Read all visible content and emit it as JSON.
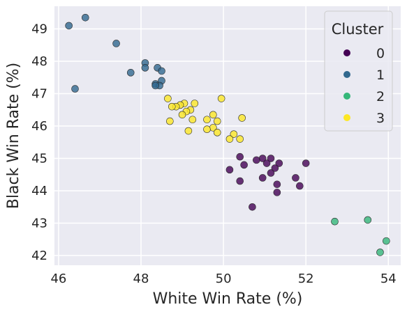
{
  "chart_data": {
    "type": "scatter",
    "title": "",
    "xlabel": "White Win Rate (%)",
    "ylabel": "Black Win Rate (%)",
    "xlim": [
      45.9,
      54.3
    ],
    "ylim": [
      41.7,
      49.7
    ],
    "xticks": [
      46,
      48,
      50,
      52,
      54
    ],
    "yticks": [
      42,
      43,
      44,
      45,
      46,
      47,
      48,
      49
    ],
    "grid": true,
    "background": "#eaeaf2",
    "legend": {
      "title": "Cluster",
      "placement": "top-right",
      "entries": [
        {
          "label": "0",
          "color": "#440154"
        },
        {
          "label": "1",
          "color": "#31688e"
        },
        {
          "label": "2",
          "color": "#35b779"
        },
        {
          "label": "3",
          "color": "#fde725"
        }
      ]
    },
    "series": [
      {
        "name": "0",
        "color": "#440154",
        "points": [
          [
            50.4,
            45.05
          ],
          [
            50.8,
            44.95
          ],
          [
            50.95,
            45.0
          ],
          [
            51.05,
            44.85
          ],
          [
            51.15,
            45.0
          ],
          [
            51.35,
            44.85
          ],
          [
            52.0,
            44.85
          ],
          [
            50.15,
            44.65
          ],
          [
            50.5,
            44.8
          ],
          [
            51.25,
            44.7
          ],
          [
            51.15,
            44.55
          ],
          [
            50.4,
            44.3
          ],
          [
            50.95,
            44.4
          ],
          [
            51.75,
            44.4
          ],
          [
            51.3,
            44.2
          ],
          [
            51.85,
            44.15
          ],
          [
            51.3,
            43.95
          ],
          [
            50.7,
            43.5
          ]
        ]
      },
      {
        "name": "1",
        "color": "#31688e",
        "points": [
          [
            46.65,
            49.35
          ],
          [
            46.25,
            49.1
          ],
          [
            47.4,
            48.55
          ],
          [
            48.1,
            47.95
          ],
          [
            48.1,
            47.8
          ],
          [
            48.4,
            47.8
          ],
          [
            48.5,
            47.7
          ],
          [
            47.75,
            47.65
          ],
          [
            48.5,
            47.4
          ],
          [
            48.35,
            47.3
          ],
          [
            48.45,
            47.25
          ],
          [
            48.35,
            47.25
          ],
          [
            46.4,
            47.15
          ]
        ]
      },
      {
        "name": "2",
        "color": "#35b779",
        "points": [
          [
            52.7,
            43.05
          ],
          [
            53.5,
            43.1
          ],
          [
            53.95,
            42.45
          ],
          [
            53.8,
            42.1
          ]
        ]
      },
      {
        "name": "3",
        "color": "#fde725",
        "points": [
          [
            49.95,
            46.85
          ],
          [
            48.65,
            46.85
          ],
          [
            49.3,
            46.7
          ],
          [
            49.05,
            46.7
          ],
          [
            48.95,
            46.65
          ],
          [
            48.85,
            46.6
          ],
          [
            48.75,
            46.6
          ],
          [
            49.2,
            46.5
          ],
          [
            49.1,
            46.45
          ],
          [
            49.75,
            46.35
          ],
          [
            49.0,
            46.35
          ],
          [
            50.45,
            46.25
          ],
          [
            49.6,
            46.2
          ],
          [
            49.25,
            46.2
          ],
          [
            48.7,
            46.15
          ],
          [
            49.85,
            46.15
          ],
          [
            49.75,
            45.95
          ],
          [
            49.6,
            45.9
          ],
          [
            49.15,
            45.85
          ],
          [
            49.85,
            45.8
          ],
          [
            50.25,
            45.75
          ],
          [
            50.15,
            45.6
          ],
          [
            50.4,
            45.6
          ]
        ]
      }
    ]
  }
}
